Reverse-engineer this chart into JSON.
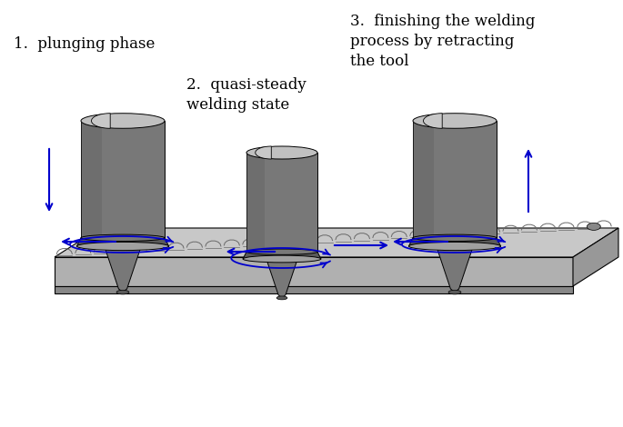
{
  "labels": {
    "phase1": "1.  plunging phase",
    "phase2": "2.  quasi-steady\nwelding state",
    "phase3": "3.  finishing the welding\nprocess by retracting\nthe tool"
  },
  "colors": {
    "tool_dark": "#5a5a5a",
    "tool_mid": "#787878",
    "tool_light": "#a0a0a0",
    "tool_top": "#c0c0c0",
    "shoulder_top": "#c8c8c8",
    "pin_dark": "#606060",
    "wp_top": "#c8c8c8",
    "wp_front": "#b0b0b0",
    "wp_side": "#989898",
    "wp_bottom": "#888888",
    "weld_dark": "#686868",
    "weld_light": "#909090",
    "arrow": "#0000cc",
    "outline": "#000000",
    "bg": "#ffffff"
  }
}
